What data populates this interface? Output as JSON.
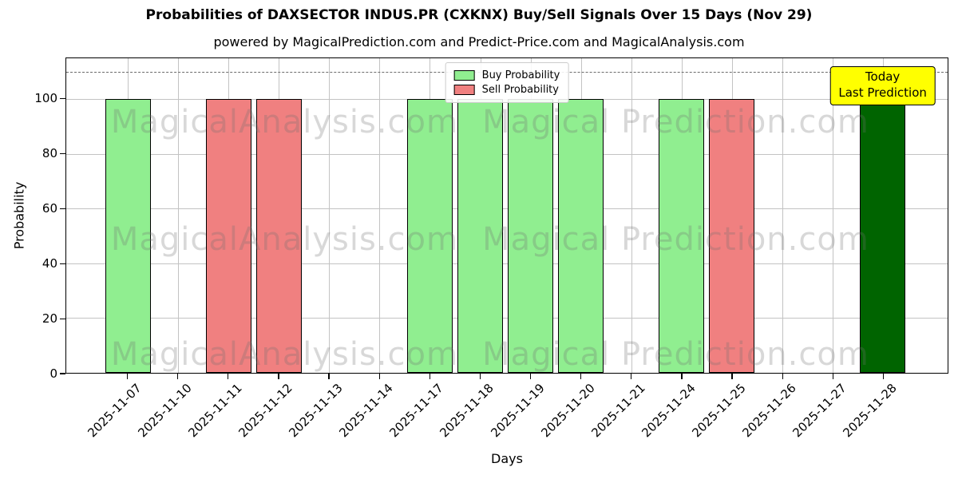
{
  "figure": {
    "title": "Probabilities of DAXSECTOR INDUS.PR (CXKNX) Buy/Sell Signals Over 15 Days (Nov 29)",
    "subtitle": "powered by MagicalPrediction.com and Predict-Price.com and MagicalAnalysis.com",
    "xlabel": "Days",
    "ylabel": "Probability"
  },
  "chart_data": {
    "type": "bar",
    "title": "Probabilities of DAXSECTOR INDUS.PR (CXKNX) Buy/Sell Signals Over 15 Days (Nov 29)",
    "xlabel": "Days",
    "ylabel": "Probability",
    "categories": [
      "2025-11-07",
      "2025-11-10",
      "2025-11-11",
      "2025-11-12",
      "2025-11-13",
      "2025-11-14",
      "2025-11-17",
      "2025-11-18",
      "2025-11-19",
      "2025-11-20",
      "2025-11-21",
      "2025-11-24",
      "2025-11-25",
      "2025-11-26",
      "2025-11-27",
      "2025-11-28"
    ],
    "series": [
      {
        "name": "Buy Probability",
        "color": "#90ee90",
        "values": [
          100,
          null,
          null,
          null,
          null,
          null,
          100,
          100,
          100,
          100,
          null,
          100,
          null,
          null,
          null,
          null
        ]
      },
      {
        "name": "Sell Probability",
        "color": "#f08080",
        "values": [
          null,
          null,
          100,
          100,
          null,
          null,
          null,
          null,
          null,
          null,
          null,
          null,
          100,
          null,
          null,
          null
        ]
      },
      {
        "name": "Today (Last Prediction)",
        "color": "#006400",
        "values": [
          null,
          null,
          null,
          null,
          null,
          null,
          null,
          null,
          null,
          null,
          null,
          null,
          null,
          null,
          null,
          100
        ]
      }
    ],
    "ylim": [
      0,
      115
    ],
    "yticks": [
      0,
      20,
      40,
      60,
      80,
      100
    ],
    "dashed_line_y": 110,
    "grid": true,
    "bar_edge_color": "#000000",
    "legend_position": "upper center"
  },
  "legend": {
    "items": [
      {
        "label": "Buy Probability",
        "color": "#90ee90"
      },
      {
        "label": "Sell Probability",
        "color": "#f08080"
      }
    ]
  },
  "annotation": {
    "lines": [
      "Today",
      "Last Prediction"
    ],
    "bg_color": "#ffff00"
  },
  "watermarks": {
    "left_text": "MagicalAnalysis.com",
    "right_text": "Magical Prediction.com"
  }
}
